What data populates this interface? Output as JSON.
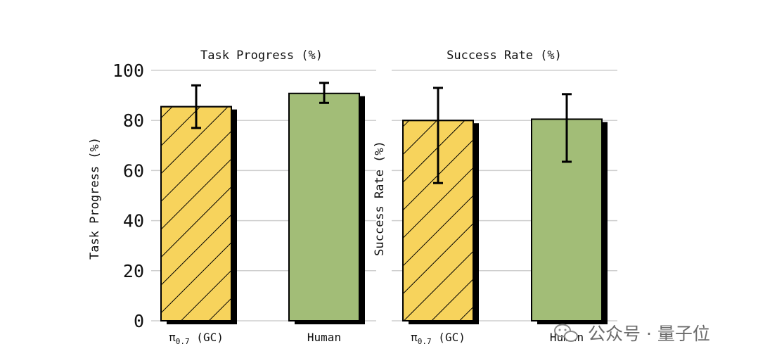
{
  "chart_data": [
    {
      "type": "bar",
      "title": "Task Progress (%)",
      "ylabel": "Task Progress (%)",
      "ylim": [
        0,
        100
      ],
      "yticks": [
        0,
        20,
        40,
        60,
        80,
        100
      ],
      "grid": true,
      "categories": [
        {
          "main": "π",
          "sub": "0.7",
          "suffix": " (GC)"
        },
        {
          "main": "Human",
          "sub": "",
          "suffix": ""
        }
      ],
      "values": [
        85.5,
        90.8
      ],
      "error_low": [
        77,
        87
      ],
      "error_high": [
        94,
        95
      ],
      "hatched": [
        true,
        false
      ],
      "colors": [
        "#f7d35c",
        "#a2bd77"
      ]
    },
    {
      "type": "bar",
      "title": "Success Rate (%)",
      "ylabel": "Success Rate (%)",
      "ylim": [
        0,
        100
      ],
      "yticks": [
        0,
        20,
        40,
        60,
        80,
        100
      ],
      "grid": true,
      "categories": [
        {
          "main": "π",
          "sub": "0.7",
          "suffix": " (GC)"
        },
        {
          "main": "Human",
          "sub": "",
          "suffix": ""
        }
      ],
      "values": [
        80,
        80.5
      ],
      "error_low": [
        55,
        63.5
      ],
      "error_high": [
        93,
        90.5
      ],
      "hatched": [
        true,
        false
      ],
      "colors": [
        "#f7d35c",
        "#a2bd77"
      ]
    }
  ],
  "watermark": {
    "text": "公众号 · 量子位",
    "icon": "wechat-icon"
  }
}
